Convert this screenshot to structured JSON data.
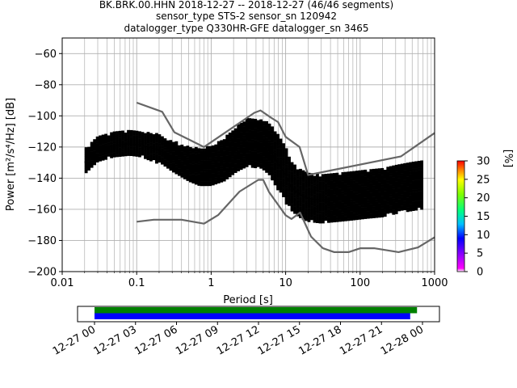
{
  "chart_data": {
    "type": "heatmap",
    "title_lines": [
      "BK.BRK.00.HHN   2018-12-27 -- 2018-12-27  (46/46 segments)",
      "sensor_type STS-2 sensor_sn 120942",
      "datalogger_type Q330HR-GFE datalogger_sn 3465"
    ],
    "xlabel": "Period [s]",
    "ylabel": "Power [m²/s⁴/Hz] [dB]",
    "x_scale": "log",
    "xlim": [
      0.01,
      1000
    ],
    "ylim": [
      -200,
      -50
    ],
    "x_ticks": [
      0.01,
      0.1,
      1,
      10,
      100,
      1000
    ],
    "x_tick_labels": [
      "0.01",
      "0.1",
      "1",
      "10",
      "100",
      "1000"
    ],
    "y_ticks": [
      -200,
      -180,
      -160,
      -140,
      -120,
      -100,
      -80,
      -60
    ],
    "y_tick_labels": [
      "−200",
      "−180",
      "−160",
      "−140",
      "−120",
      "−100",
      "−80",
      "−60"
    ],
    "grid": true,
    "colorbar": {
      "label": "[%]",
      "range": [
        0,
        30
      ],
      "ticks": [
        0,
        5,
        10,
        15,
        20,
        25,
        30
      ],
      "tick_labels": [
        "0",
        "5",
        "10",
        "15",
        "20",
        "25",
        "30"
      ]
    },
    "colors": {
      "noise_model": "#666666",
      "mode_line": "#000000",
      "red_line": "#cc0000"
    },
    "series": [
      {
        "role": "new-high-noise-model",
        "x": [
          0.1,
          0.22,
          0.32,
          0.8,
          3.8,
          4.6,
          6.3,
          7.9,
          10,
          15.4,
          20,
          354.8,
          1000
        ],
        "y": [
          -91.5,
          -97.4,
          -110.5,
          -120,
          -98,
          -96.5,
          -101,
          -104,
          -113.5,
          -120,
          -138,
          -126,
          -111
        ]
      },
      {
        "role": "new-low-noise-model",
        "x": [
          0.1,
          0.17,
          0.4,
          0.8,
          1.24,
          2.4,
          4.3,
          5,
          6,
          10,
          12,
          15.6,
          21.9,
          31.6,
          45,
          70,
          101,
          154,
          328,
          600,
          1000
        ],
        "y": [
          -168,
          -166.7,
          -166.7,
          -169.2,
          -163.7,
          -148.6,
          -141.1,
          -141.1,
          -149,
          -163.8,
          -166.2,
          -162.1,
          -177.5,
          -185,
          -187.5,
          -187.5,
          -185,
          -185,
          -187.5,
          -184.5,
          -178
        ]
      },
      {
        "role": "mode",
        "x": [
          0.02,
          0.03,
          0.05,
          0.08,
          0.12,
          0.2,
          0.3,
          0.5,
          0.7,
          1,
          1.5,
          2.2,
          3,
          4,
          5,
          6.5,
          8,
          10,
          12,
          15,
          20,
          30,
          50,
          80,
          120,
          200,
          300,
          500,
          700
        ],
        "y": [
          -130,
          -122,
          -119,
          -118,
          -119,
          -122,
          -127,
          -132,
          -134,
          -133,
          -129,
          -122,
          -118,
          -118,
          -120,
          -124,
          -131,
          -138,
          -146,
          -150,
          -153,
          -154,
          -153,
          -152,
          -151,
          -150,
          -148,
          -146,
          -145
        ]
      }
    ]
  },
  "timeline": {
    "x_tick_labels": [
      "12-27 00",
      "12-27 03",
      "12-27 06",
      "12-27 09",
      "12-27 12",
      "12-27 15",
      "12-27 18",
      "12-27 21",
      "12-28 00"
    ],
    "bars": [
      {
        "role": "data-coverage",
        "color": "#008000",
        "start_hour": 0,
        "end_hour": 23.6
      },
      {
        "role": "psd-segments",
        "color": "#0000ff",
        "start_hour": 0,
        "end_hour": 23.1
      }
    ]
  }
}
